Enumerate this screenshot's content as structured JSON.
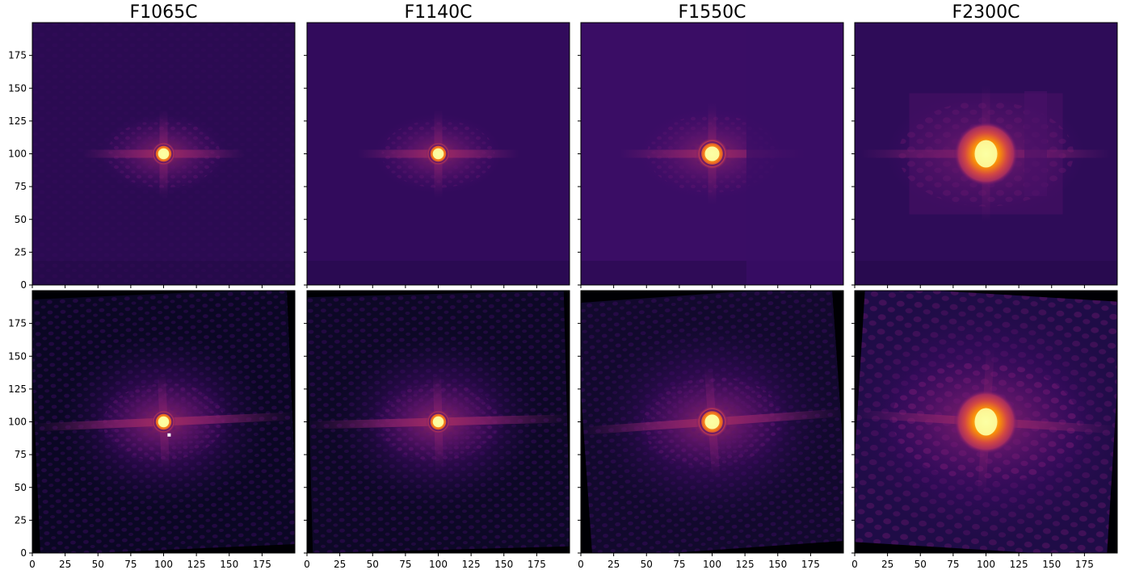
{
  "figure": {
    "colormap": "inferno",
    "columns": [
      "F1065C",
      "F1140C",
      "F1550C",
      "F2300C"
    ]
  },
  "chart_data": [
    {
      "type": "heatmap",
      "title": "F1065C",
      "row": "top",
      "xlim": [
        0,
        199
      ],
      "ylim": [
        0,
        199
      ],
      "xticks": [
        0,
        25,
        50,
        75,
        100,
        125,
        150,
        175
      ],
      "yticks": [
        0,
        25,
        50,
        75,
        100,
        125,
        150,
        175
      ],
      "x_tick_labels_shown": false,
      "y_tick_labels_shown": true,
      "source_center": [
        100,
        100
      ],
      "peak_intensity": 1.0,
      "background_level": 0.17
    },
    {
      "type": "heatmap",
      "title": "F1140C",
      "row": "top",
      "xlim": [
        0,
        199
      ],
      "ylim": [
        0,
        199
      ],
      "xticks": [
        0,
        25,
        50,
        75,
        100,
        125,
        150,
        175
      ],
      "yticks": [
        0,
        25,
        50,
        75,
        100,
        125,
        150,
        175
      ],
      "x_tick_labels_shown": false,
      "y_tick_labels_shown": false,
      "source_center": [
        100,
        100
      ],
      "peak_intensity": 1.0,
      "background_level": 0.19
    },
    {
      "type": "heatmap",
      "title": "F1550C",
      "row": "top",
      "xlim": [
        0,
        199
      ],
      "ylim": [
        0,
        199
      ],
      "xticks": [
        0,
        25,
        50,
        75,
        100,
        125,
        150,
        175
      ],
      "yticks": [
        0,
        25,
        50,
        75,
        100,
        125,
        150,
        175
      ],
      "x_tick_labels_shown": false,
      "y_tick_labels_shown": false,
      "source_center": [
        100,
        100
      ],
      "peak_intensity": 1.0,
      "background_level": 0.21
    },
    {
      "type": "heatmap",
      "title": "F2300C",
      "row": "top",
      "xlim": [
        0,
        199
      ],
      "ylim": [
        0,
        199
      ],
      "xticks": [
        0,
        25,
        50,
        75,
        100,
        125,
        150,
        175
      ],
      "yticks": [
        0,
        25,
        50,
        75,
        100,
        125,
        150,
        175
      ],
      "x_tick_labels_shown": false,
      "y_tick_labels_shown": false,
      "source_center": [
        100,
        100
      ],
      "peak_intensity": 1.0,
      "background_level": 0.18
    },
    {
      "type": "heatmap",
      "title": "",
      "row": "bottom",
      "xlim": [
        0,
        199
      ],
      "ylim": [
        0,
        199
      ],
      "xticks": [
        0,
        25,
        50,
        75,
        100,
        125,
        150,
        175
      ],
      "yticks": [
        0,
        25,
        50,
        75,
        100,
        125,
        150,
        175
      ],
      "x_tick_labels_shown": true,
      "y_tick_labels_shown": true,
      "source_center": [
        100,
        100
      ],
      "peak_intensity": 1.0,
      "background_level": 0.05
    },
    {
      "type": "heatmap",
      "title": "",
      "row": "bottom",
      "xlim": [
        0,
        199
      ],
      "ylim": [
        0,
        199
      ],
      "xticks": [
        0,
        25,
        50,
        75,
        100,
        125,
        150,
        175
      ],
      "yticks": [
        0,
        25,
        50,
        75,
        100,
        125,
        150,
        175
      ],
      "x_tick_labels_shown": true,
      "y_tick_labels_shown": false,
      "source_center": [
        100,
        100
      ],
      "peak_intensity": 1.0,
      "background_level": 0.06
    },
    {
      "type": "heatmap",
      "title": "",
      "row": "bottom",
      "xlim": [
        0,
        199
      ],
      "ylim": [
        0,
        199
      ],
      "xticks": [
        0,
        25,
        50,
        75,
        100,
        125,
        150,
        175
      ],
      "yticks": [
        0,
        25,
        50,
        75,
        100,
        125,
        150,
        175
      ],
      "x_tick_labels_shown": true,
      "y_tick_labels_shown": false,
      "source_center": [
        100,
        100
      ],
      "peak_intensity": 1.0,
      "background_level": 0.08
    },
    {
      "type": "heatmap",
      "title": "",
      "row": "bottom",
      "xlim": [
        0,
        199
      ],
      "ylim": [
        0,
        199
      ],
      "xticks": [
        0,
        25,
        50,
        75,
        100,
        125,
        150,
        175
      ],
      "yticks": [
        0,
        25,
        50,
        75,
        100,
        125,
        150,
        175
      ],
      "x_tick_labels_shown": true,
      "y_tick_labels_shown": false,
      "source_center": [
        100,
        100
      ],
      "peak_intensity": 1.0,
      "background_level": 0.12
    }
  ]
}
